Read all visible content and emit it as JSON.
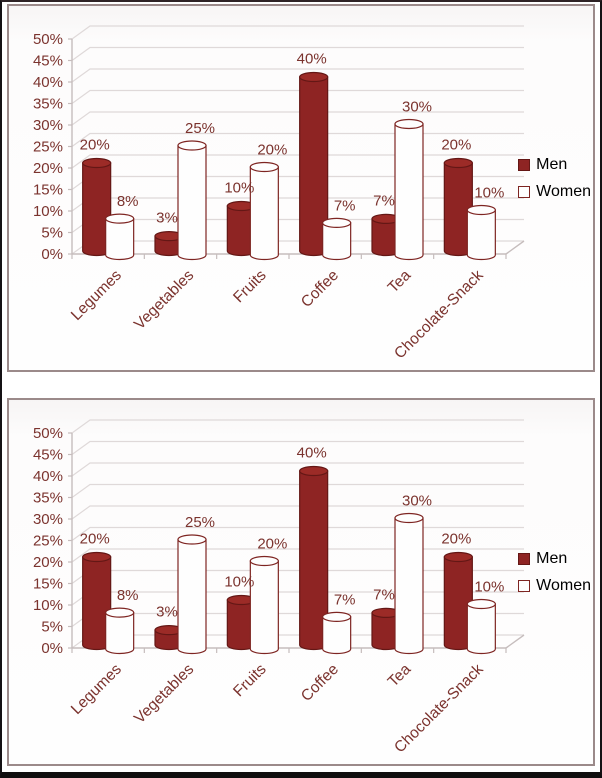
{
  "window": {
    "background": "#ffffff",
    "frame_color": "#141114"
  },
  "colors": {
    "men_fill": "#8E2423",
    "men_fill_top": "#9C2B27",
    "men_stroke": "#641715",
    "women_fill": "#FEFEFE",
    "women_stroke": "#7E2522",
    "grid": "#DFD9D9",
    "axis": "#C6BDBD",
    "text": "#7B332E",
    "panel_border": "#9B8A8A"
  },
  "legend": {
    "men_swatch": "men-color-swatch",
    "women_swatch": "women-color-swatch"
  },
  "chart_data": [
    {
      "type": "bar",
      "style": "3d-cylinder",
      "title": "",
      "categories": [
        "Legumes",
        "Vegetables",
        "Fruits",
        "Coffee",
        "Tea",
        "Chocolate-Snack"
      ],
      "series": [
        {
          "name": "Men",
          "values": [
            20,
            3,
            10,
            40,
            7,
            20
          ],
          "data_labels": [
            "20%",
            "3%",
            "10%",
            "40%",
            "7%",
            "20%"
          ],
          "color": "#8E2423"
        },
        {
          "name": "Women",
          "values": [
            8,
            25,
            20,
            7,
            30,
            10
          ],
          "data_labels": [
            "8%",
            "25%",
            "20%",
            "7%",
            "30%",
            "10%"
          ],
          "color": "#FFFFFF"
        }
      ],
      "y_axis": {
        "min": 0,
        "max": 50,
        "step": 5,
        "ticks": [
          "0%",
          "5%",
          "10%",
          "15%",
          "20%",
          "25%",
          "30%",
          "35%",
          "40%",
          "45%",
          "50%"
        ]
      },
      "grid": true,
      "legend_position": "right"
    },
    {
      "type": "bar",
      "style": "3d-cylinder",
      "title": "",
      "categories": [
        "Legumes",
        "Vegetables",
        "Fruits",
        "Coffee",
        "Tea",
        "Chocolate-Snack"
      ],
      "series": [
        {
          "name": "Men",
          "values": [
            20,
            3,
            10,
            40,
            7,
            20
          ],
          "data_labels": [
            "20%",
            "3%",
            "10%",
            "40%",
            "7%",
            "20%"
          ],
          "color": "#8E2423"
        },
        {
          "name": "Women",
          "values": [
            8,
            25,
            20,
            7,
            30,
            10
          ],
          "data_labels": [
            "8%",
            "25%",
            "20%",
            "7%",
            "30%",
            "10%"
          ],
          "color": "#FFFFFF"
        }
      ],
      "y_axis": {
        "min": 0,
        "max": 50,
        "step": 5,
        "ticks": [
          "0%",
          "5%",
          "10%",
          "15%",
          "20%",
          "25%",
          "30%",
          "35%",
          "40%",
          "45%",
          "50%"
        ]
      },
      "grid": true,
      "legend_position": "right"
    }
  ]
}
